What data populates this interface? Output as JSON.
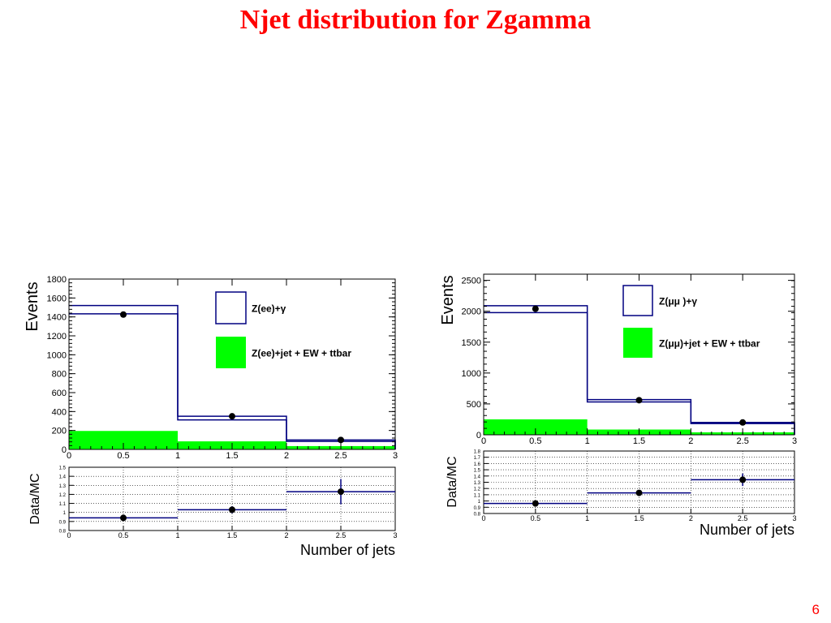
{
  "slide": {
    "title": "Njet distribution for Zgamma",
    "page_number": "6"
  },
  "colors": {
    "title": "#ff0000",
    "mc_line": "#000080",
    "background_fill": "#00ff00",
    "data_marker": "#000000"
  },
  "chart_data": [
    {
      "type": "histogram",
      "panel": "Z(ee)+γ",
      "top": {
        "ylabel": "Events",
        "ylim": [
          0,
          1800
        ],
        "yticks": [
          "0",
          "200",
          "400",
          "600",
          "800",
          "1000",
          "1200",
          "1400",
          "1600",
          "1800"
        ],
        "xlim": [
          0,
          3
        ],
        "xticks": [
          "0",
          "0.5",
          "1",
          "1.5",
          "2",
          "2.5",
          "3"
        ],
        "bin_edges": [
          0,
          1,
          2,
          3
        ],
        "series": [
          {
            "name": "Z(ee)+γ",
            "style": "line",
            "values": [
              1520,
              350,
              100
            ]
          },
          {
            "name": "Z(ee)+jet + EW + ttbar",
            "style": "filled",
            "values": [
              195,
              85,
              35
            ]
          }
        ],
        "data_points": {
          "x": [
            0.5,
            1.5,
            2.5
          ],
          "y": [
            1425,
            350,
            100
          ]
        },
        "legend": [
          "Z(ee)+γ",
          "Z(ee)+jet + EW + ttbar"
        ],
        "legend_position": "top-right"
      },
      "ratio": {
        "ylabel": "Data/MC",
        "ylim": [
          0.8,
          1.5
        ],
        "yticks": [
          "0.8",
          "0.9",
          "1",
          "1.1",
          "1.2",
          "1.3",
          "1.4",
          "1.5"
        ],
        "xticks": [
          "0",
          "0.5",
          "1",
          "1.5",
          "2",
          "2.5",
          "3"
        ],
        "xlabel": "Number of jets",
        "values": [
          0.94,
          1.03,
          1.23
        ],
        "errors": [
          0.01,
          0.04,
          0.14
        ],
        "grid": true
      }
    },
    {
      "type": "histogram",
      "panel": "Z(μμ)+γ",
      "top": {
        "ylabel": "Events",
        "ylim": [
          0,
          2600
        ],
        "yticks": [
          "0",
          "500",
          "1000",
          "1500",
          "2000",
          "2500"
        ],
        "xlim": [
          0,
          3
        ],
        "xticks": [
          "0",
          "0.5",
          "1",
          "1.5",
          "2",
          "2.5",
          "3"
        ],
        "bin_edges": [
          0,
          1,
          2,
          3
        ],
        "series": [
          {
            "name": "Z(μμ )+γ",
            "style": "line",
            "values": [
              2090,
              570,
              200
            ]
          },
          {
            "name": "Z(μμ)+jet + EW + ttbar",
            "style": "filled",
            "values": [
              250,
              85,
              40
            ]
          }
        ],
        "data_points": {
          "x": [
            0.5,
            1.5,
            2.5
          ],
          "y": [
            2040,
            560,
            200
          ]
        },
        "legend": [
          "Z(μμ )+γ",
          "Z(μμ)+jet + EW + ttbar"
        ],
        "legend_position": "top-right"
      },
      "ratio": {
        "ylabel": "Data/MC",
        "ylim": [
          0.8,
          1.8
        ],
        "yticks": [
          "0.8",
          "0.9",
          "1",
          "1.1",
          "1.2",
          "1.3",
          "1.4",
          "1.5",
          "1.6",
          "1.7",
          "1.8"
        ],
        "xticks": [
          "0",
          "0.5",
          "1",
          "1.5",
          "2",
          "2.5",
          "3"
        ],
        "xlabel": "Number of jets",
        "values": [
          0.96,
          1.13,
          1.34
        ],
        "errors": [
          0.01,
          0.03,
          0.1
        ],
        "grid": true
      }
    }
  ]
}
